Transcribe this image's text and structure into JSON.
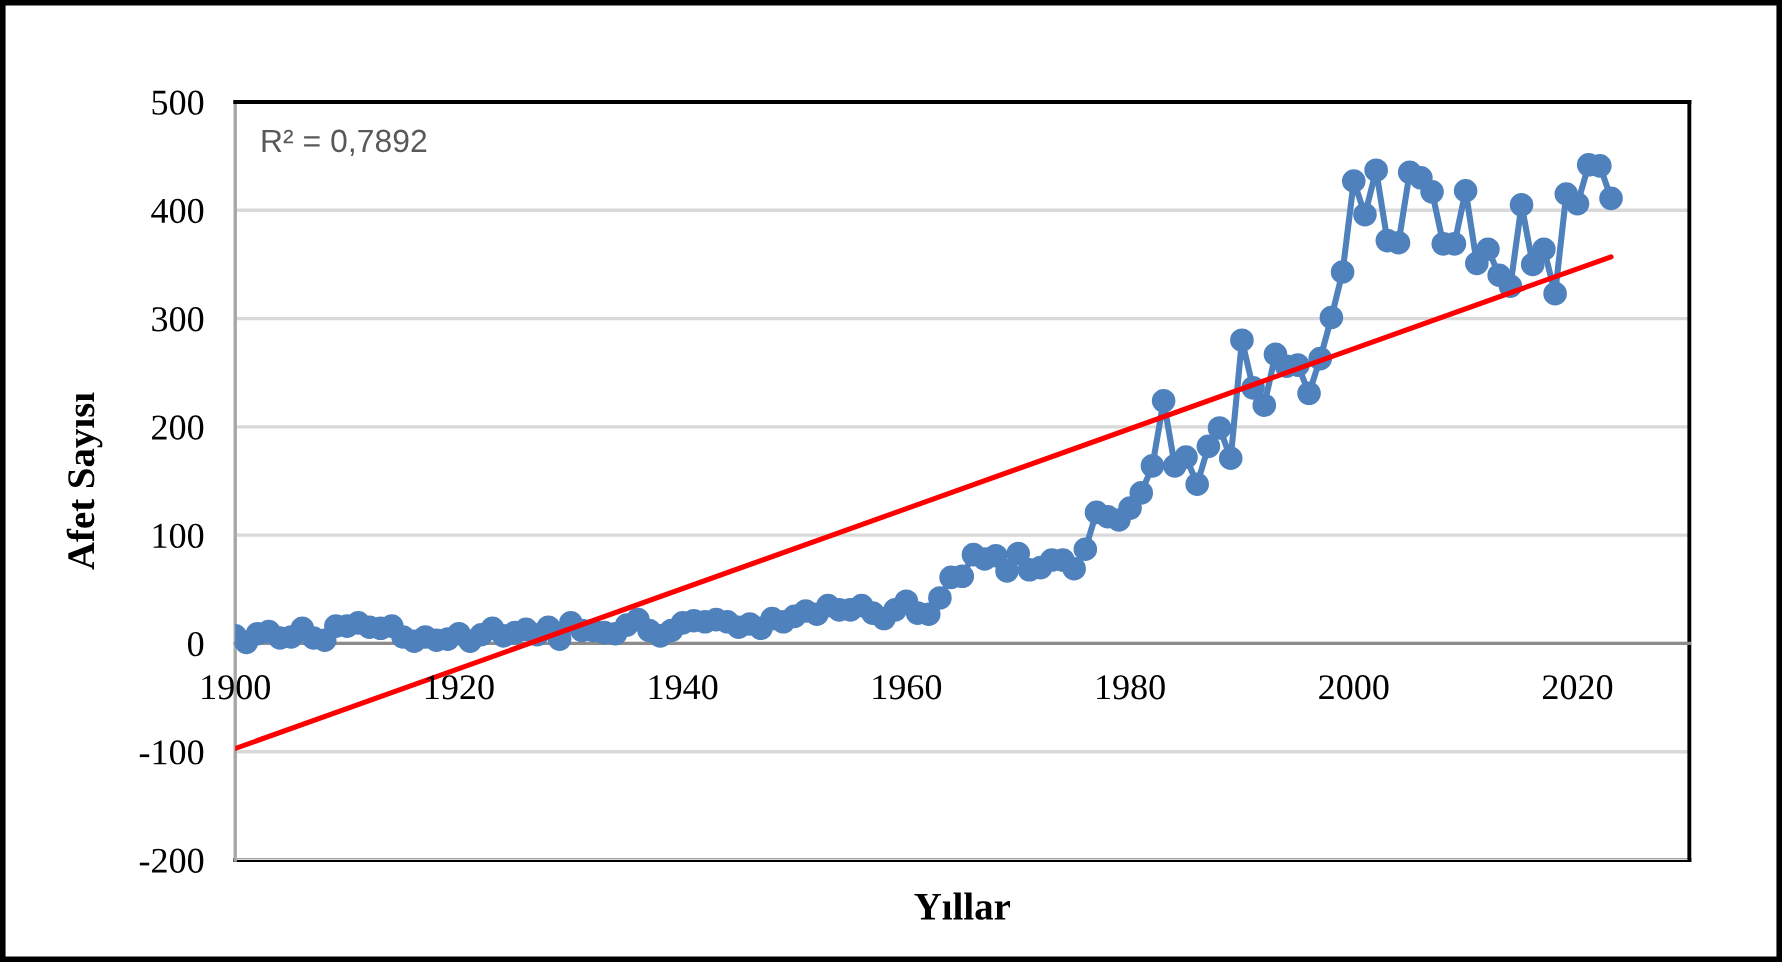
{
  "chart_data": {
    "type": "line",
    "xlabel": "Yıllar",
    "ylabel": "Afet Sayısı",
    "annotations": [
      "R² = 0,7892"
    ],
    "xlim": [
      1900,
      2030
    ],
    "xticks": [
      1900,
      1920,
      1940,
      1960,
      1980,
      2000,
      2020
    ],
    "ylim": [
      -200,
      500
    ],
    "yticks": [
      -200,
      -100,
      0,
      100,
      200,
      300,
      400,
      500
    ],
    "grid": "y",
    "marker": "circle",
    "line_style": "solid",
    "series": [
      {
        "color": "#4f81bd",
        "x": [
          1900,
          1901,
          1902,
          1903,
          1904,
          1905,
          1906,
          1907,
          1908,
          1909,
          1910,
          1911,
          1912,
          1913,
          1914,
          1915,
          1916,
          1917,
          1918,
          1919,
          1920,
          1921,
          1922,
          1923,
          1924,
          1925,
          1926,
          1927,
          1928,
          1929,
          1930,
          1931,
          1932,
          1933,
          1934,
          1935,
          1936,
          1937,
          1938,
          1939,
          1940,
          1941,
          1942,
          1943,
          1944,
          1945,
          1946,
          1947,
          1948,
          1949,
          1950,
          1951,
          1952,
          1953,
          1954,
          1955,
          1956,
          1957,
          1958,
          1959,
          1960,
          1961,
          1962,
          1963,
          1964,
          1965,
          1966,
          1967,
          1968,
          1969,
          1970,
          1971,
          1972,
          1973,
          1974,
          1975,
          1976,
          1977,
          1978,
          1979,
          1980,
          1981,
          1982,
          1983,
          1984,
          1985,
          1986,
          1987,
          1988,
          1989,
          1990,
          1991,
          1992,
          1993,
          1994,
          1995,
          1996,
          1997,
          1998,
          1999,
          2000,
          2001,
          2002,
          2003,
          2004,
          2005,
          2006,
          2007,
          2008,
          2009,
          2010,
          2011,
          2012,
          2013,
          2014,
          2015,
          2016,
          2017,
          2018,
          2019,
          2020,
          2021,
          2022,
          2023
        ],
        "values": [
          7,
          1,
          9,
          11,
          5,
          6,
          14,
          5,
          3,
          16,
          16,
          19,
          15,
          14,
          16,
          6,
          2,
          6,
          3,
          4,
          9,
          2,
          8,
          14,
          7,
          10,
          13,
          8,
          15,
          4,
          19,
          12,
          12,
          10,
          9,
          17,
          22,
          12,
          7,
          12,
          19,
          21,
          20,
          22,
          20,
          15,
          18,
          14,
          23,
          20,
          25,
          30,
          27,
          35,
          31,
          31,
          35,
          28,
          23,
          31,
          39,
          28,
          27,
          42,
          61,
          62,
          82,
          78,
          81,
          67,
          83,
          68,
          70,
          77,
          77,
          69,
          87,
          121,
          117,
          114,
          125,
          139,
          164,
          224,
          164,
          172,
          147,
          182,
          199,
          171,
          280,
          236,
          220,
          267,
          256,
          257,
          231,
          263,
          301,
          343,
          427,
          396,
          437,
          372,
          370,
          435,
          430,
          417,
          369,
          369,
          418,
          351,
          364,
          340,
          330,
          405,
          350,
          364,
          323,
          415,
          406,
          442,
          441,
          411
        ]
      },
      {
        "color": "#ff0000",
        "marker": "none",
        "x": [
          1900,
          2023
        ],
        "values": [
          -97,
          357
        ]
      }
    ]
  }
}
